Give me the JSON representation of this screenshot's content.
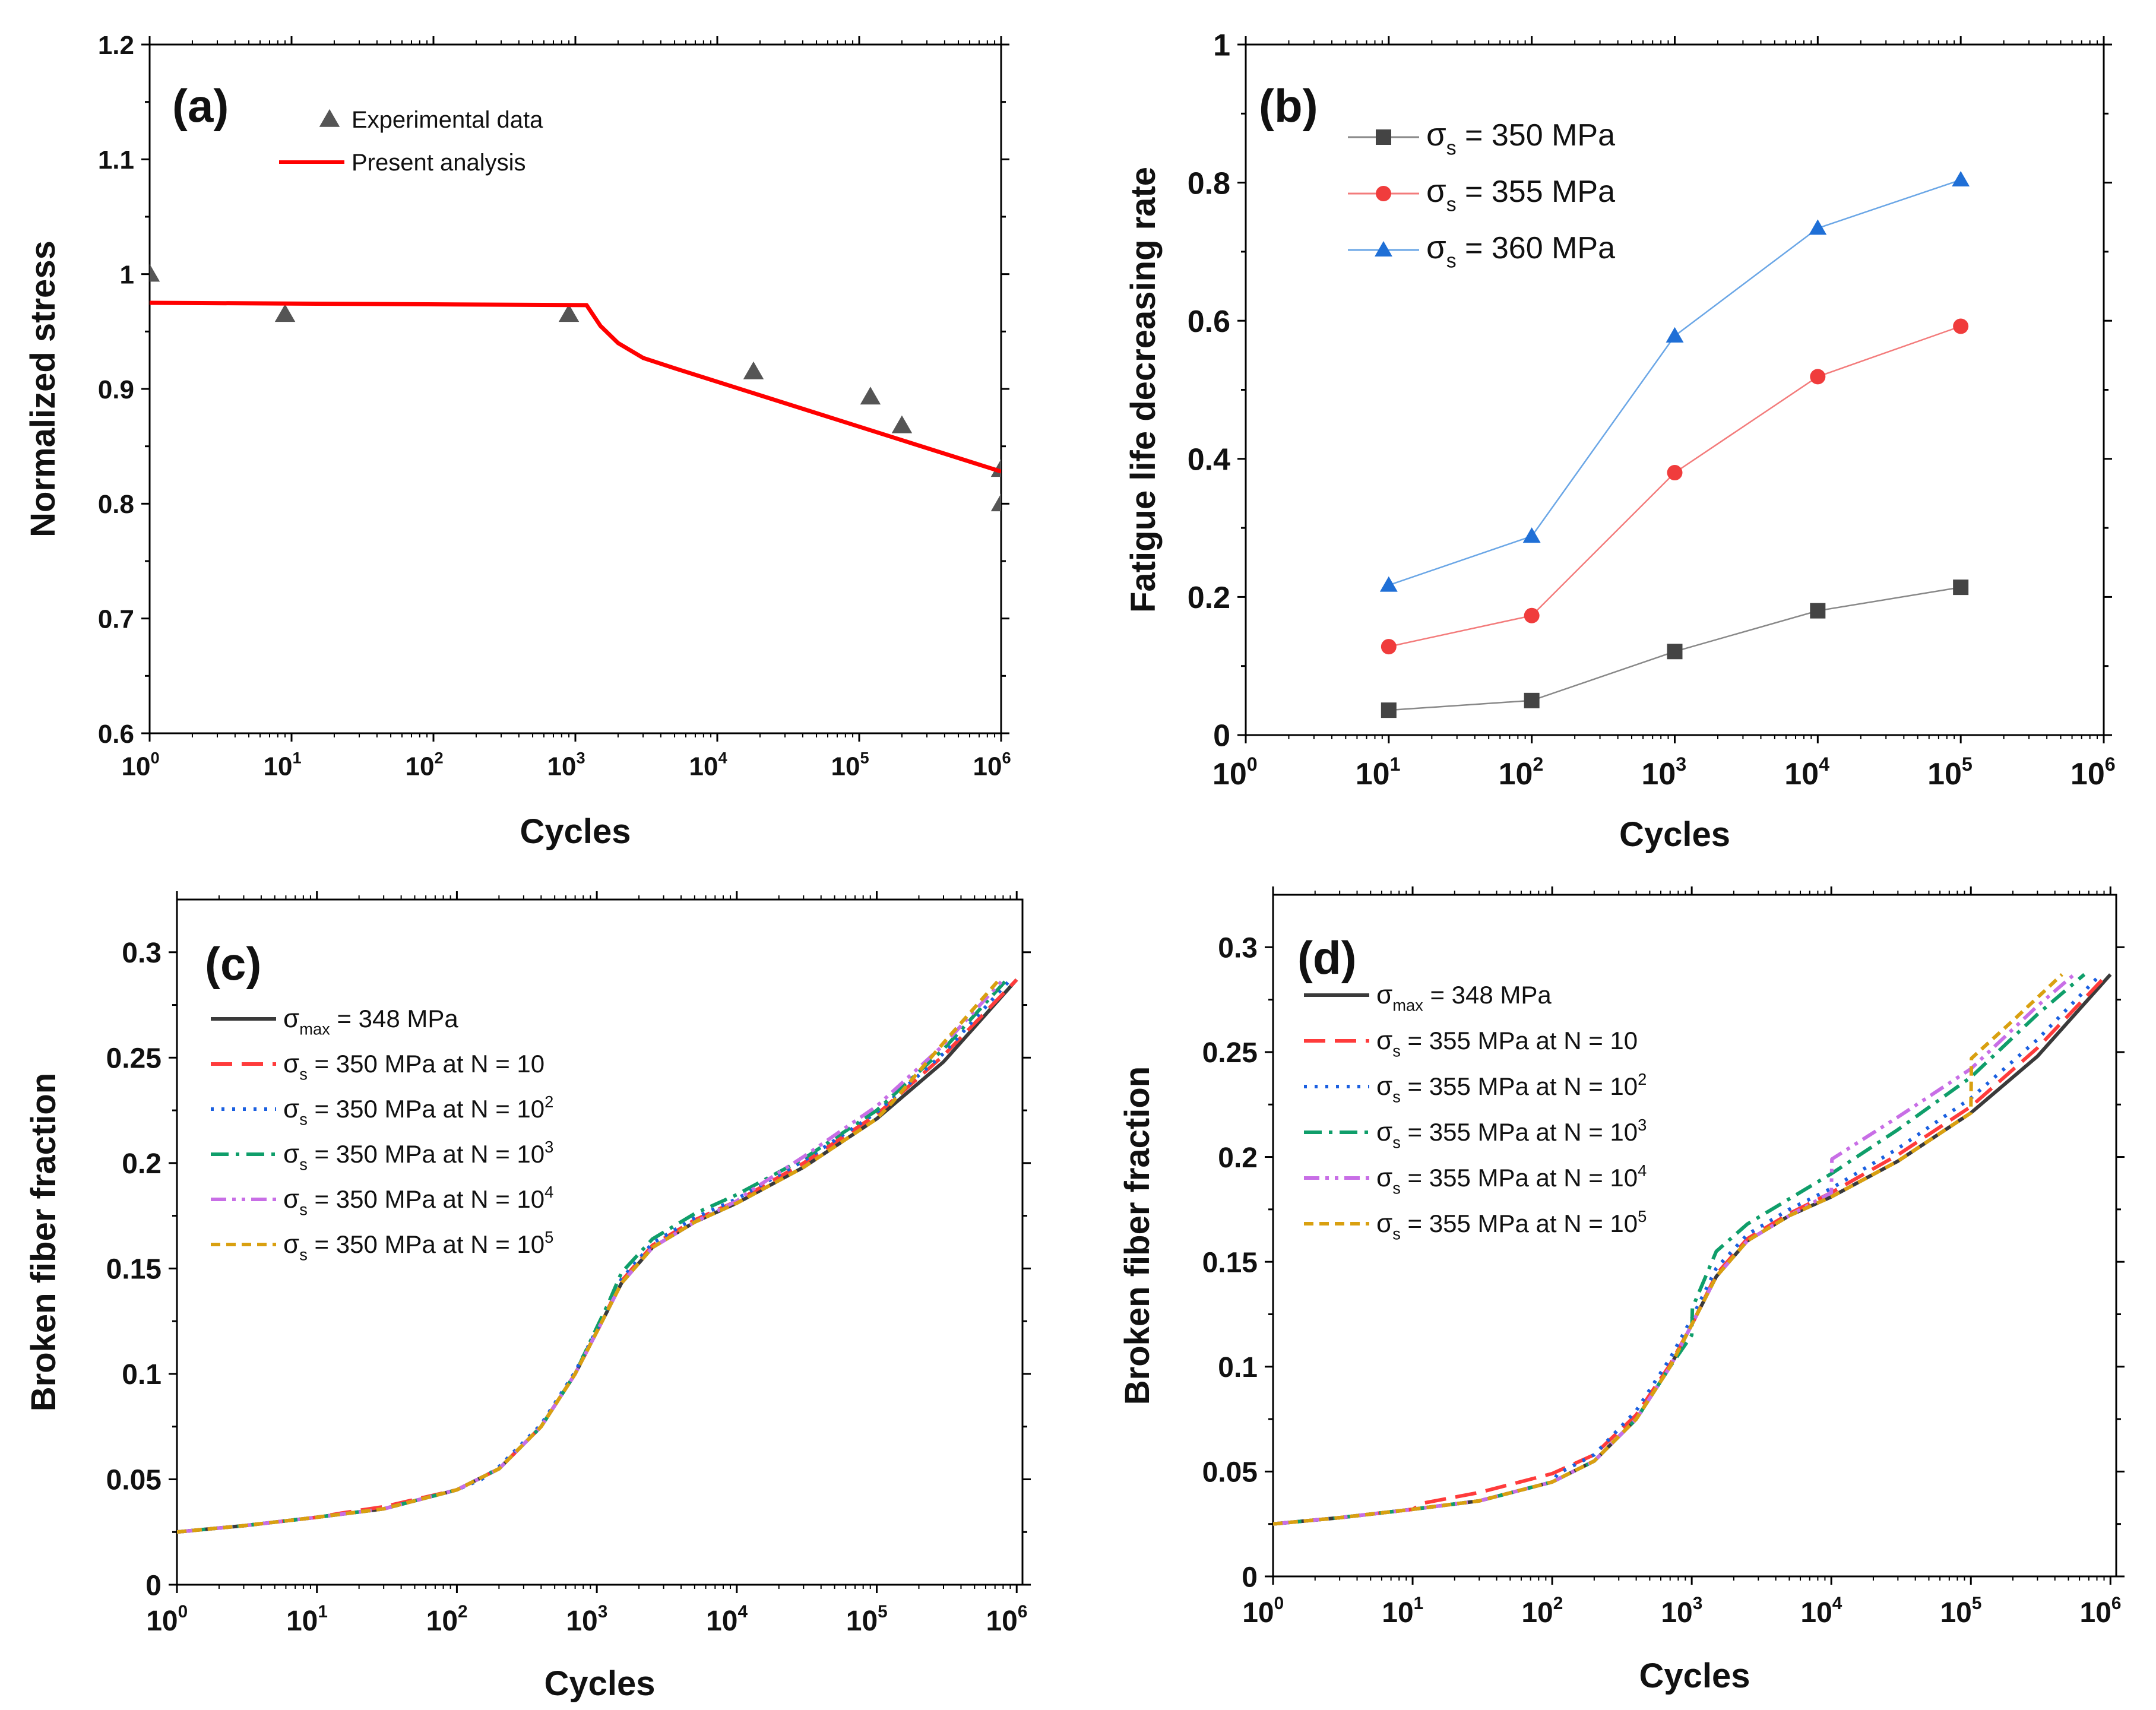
{
  "figure": {
    "background": "#ffffff"
  },
  "chart_data": [
    {
      "id": "a",
      "type": "line",
      "panel_label": "(a)",
      "xlabel": "Cycles",
      "ylabel": "Normalized stress",
      "xscale": "log",
      "xlim": [
        1,
        1000000
      ],
      "ylim": [
        0.6,
        1.2
      ],
      "x_tick_bases": [
        "10",
        "10",
        "10",
        "10",
        "10",
        "10",
        "10"
      ],
      "x_tick_exps": [
        "0",
        "1",
        "2",
        "3",
        "4",
        "5",
        "6"
      ],
      "x_tick_values": [
        1,
        10,
        100,
        1000,
        10000,
        100000,
        1000000
      ],
      "y_tick_labels": [
        "0.6",
        "0.7",
        "0.8",
        "0.9",
        "1",
        "1.1",
        "1.2"
      ],
      "y_tick_values": [
        0.6,
        0.7,
        0.8,
        0.9,
        1.0,
        1.1,
        1.2
      ],
      "legend": {
        "position": "top-center"
      },
      "series": [
        {
          "name": "Experimental data",
          "kind": "scatter",
          "marker": "triangle",
          "color": "#555555",
          "x": [
            1,
            9,
            900,
            18000,
            120000,
            200000,
            1000000,
            1000000
          ],
          "y": [
            1.0,
            0.965,
            0.965,
            0.915,
            0.893,
            0.868,
            0.83,
            0.8
          ]
        },
        {
          "name": "Present analysis",
          "kind": "line",
          "color": "#ff0000",
          "dash": "solid",
          "x": [
            1,
            1200,
            1500,
            2000,
            3000,
            5000,
            1000000
          ],
          "y": [
            0.975,
            0.973,
            0.955,
            0.94,
            0.927,
            0.918,
            0.828
          ]
        }
      ]
    },
    {
      "id": "b",
      "type": "line",
      "panel_label": "(b)",
      "xlabel": "Cycles",
      "ylabel": "Fatigue life decreasing rate",
      "xscale": "log",
      "xlim": [
        1,
        1000000
      ],
      "ylim": [
        0,
        1
      ],
      "x_tick_bases": [
        "10",
        "10",
        "10",
        "10",
        "10",
        "10",
        "10"
      ],
      "x_tick_exps": [
        "0",
        "1",
        "2",
        "3",
        "4",
        "5",
        "6"
      ],
      "x_tick_values": [
        1,
        10,
        100,
        1000,
        10000,
        100000,
        1000000
      ],
      "y_tick_labels": [
        "0",
        "0.2",
        "0.4",
        "0.6",
        "0.8",
        "1"
      ],
      "y_tick_values": [
        0,
        0.2,
        0.4,
        0.6,
        0.8,
        1.0
      ],
      "legend": {
        "position": "top-left"
      },
      "series": [
        {
          "name_prefix": "σ",
          "name_sub": "s",
          "name_suffix": " = 350 MPa",
          "kind": "line-marker",
          "marker": "square",
          "color": "#444444",
          "line_color": "#888888",
          "x": [
            10,
            100,
            1000,
            10000,
            100000
          ],
          "y": [
            0.036,
            0.05,
            0.121,
            0.18,
            0.214
          ]
        },
        {
          "name_prefix": "σ",
          "name_sub": "s",
          "name_suffix": " = 355 MPa",
          "kind": "line-marker",
          "marker": "circle",
          "color": "#f03c3c",
          "line_color": "#f37b7b",
          "x": [
            10,
            100,
            1000,
            10000,
            100000
          ],
          "y": [
            0.128,
            0.173,
            0.38,
            0.519,
            0.592
          ]
        },
        {
          "name_prefix": "σ",
          "name_sub": "s",
          "name_suffix": " = 360 MPa",
          "kind": "line-marker",
          "marker": "triangle",
          "color": "#1f6fd6",
          "line_color": "#6aa6e6",
          "x": [
            10,
            100,
            1000,
            10000,
            100000
          ],
          "y": [
            0.217,
            0.288,
            0.578,
            0.734,
            0.804
          ]
        }
      ]
    },
    {
      "id": "c",
      "type": "line",
      "panel_label": "(c)",
      "xlabel": "Cycles",
      "ylabel": "Broken fiber fraction",
      "xscale": "log",
      "xlim": [
        1,
        1100000
      ],
      "ylim": [
        0,
        0.325
      ],
      "x_tick_bases": [
        "10",
        "10",
        "10",
        "10",
        "10",
        "10",
        "10"
      ],
      "x_tick_exps": [
        "0",
        "1",
        "2",
        "3",
        "4",
        "5",
        "6"
      ],
      "x_tick_values": [
        1,
        10,
        100,
        1000,
        10000,
        100000,
        1000000
      ],
      "y_tick_labels": [
        "0",
        "0.05",
        "0.1",
        "0.15",
        "0.2",
        "0.25",
        "0.3"
      ],
      "y_tick_values": [
        0,
        0.05,
        0.1,
        0.15,
        0.2,
        0.25,
        0.3
      ],
      "legend": {
        "position": "upper-left"
      },
      "series": [
        {
          "name_prefix": "σ",
          "name_sub": "max",
          "name_suffix": " = 348 MPa",
          "name_sup": "",
          "color": "#3a3a3a",
          "dash": "solid",
          "x": [
            1,
            3,
            10,
            30,
            100,
            200,
            400,
            700,
            1000,
            1500,
            2500,
            5000,
            10000,
            30000,
            100000,
            300000,
            1000000
          ],
          "y": [
            0.025,
            0.028,
            0.032,
            0.036,
            0.045,
            0.055,
            0.075,
            0.1,
            0.12,
            0.143,
            0.16,
            0.172,
            0.181,
            0.198,
            0.221,
            0.248,
            0.287
          ]
        },
        {
          "name_prefix": "σ",
          "name_sub": "s",
          "name_suffix": " = 350 MPa at N = 10",
          "name_sup": "",
          "color": "#ff3b3b",
          "dash": "long",
          "x": [
            1,
            3,
            10,
            15,
            30,
            100,
            200,
            400,
            700,
            1000,
            1500,
            2500,
            5000,
            10000,
            30000,
            100000,
            300000,
            1000000
          ],
          "y": [
            0.025,
            0.028,
            0.032,
            0.034,
            0.037,
            0.045,
            0.055,
            0.075,
            0.1,
            0.12,
            0.144,
            0.161,
            0.173,
            0.182,
            0.2,
            0.223,
            0.251,
            0.287
          ]
        },
        {
          "name_prefix": "σ",
          "name_sub": "s",
          "name_suffix": " = 350 MPa at N = 10",
          "name_sup": "2",
          "color": "#1a5fe0",
          "dash": "dot",
          "x": [
            1,
            3,
            10,
            30,
            100,
            150,
            200,
            400,
            700,
            1000,
            1500,
            2500,
            5000,
            10000,
            30000,
            100000,
            300000,
            900000
          ],
          "y": [
            0.025,
            0.028,
            0.032,
            0.036,
            0.045,
            0.05,
            0.056,
            0.076,
            0.101,
            0.121,
            0.145,
            0.162,
            0.174,
            0.183,
            0.201,
            0.224,
            0.252,
            0.287
          ]
        },
        {
          "name_prefix": "σ",
          "name_sub": "s",
          "name_suffix": " = 350 MPa at N = 10",
          "name_sup": "3",
          "color": "#0f9e6a",
          "dash": "dashdot",
          "x": [
            1,
            3,
            10,
            30,
            100,
            200,
            400,
            700,
            1000,
            1200,
            1500,
            2500,
            5000,
            10000,
            30000,
            100000,
            300000,
            850000
          ],
          "y": [
            0.025,
            0.028,
            0.032,
            0.036,
            0.045,
            0.055,
            0.075,
            0.1,
            0.122,
            0.133,
            0.148,
            0.164,
            0.176,
            0.185,
            0.202,
            0.225,
            0.254,
            0.287
          ]
        },
        {
          "name_prefix": "σ",
          "name_sub": "s",
          "name_suffix": " = 350 MPa at N = 10",
          "name_sup": "4",
          "color": "#c86ee6",
          "dash": "dashdotdot",
          "x": [
            1,
            3,
            10,
            30,
            100,
            200,
            400,
            700,
            1000,
            1500,
            2500,
            5000,
            10000,
            12000,
            30000,
            100000,
            300000,
            800000
          ],
          "y": [
            0.025,
            0.028,
            0.032,
            0.036,
            0.045,
            0.055,
            0.075,
            0.1,
            0.12,
            0.143,
            0.16,
            0.172,
            0.182,
            0.186,
            0.203,
            0.227,
            0.256,
            0.287
          ]
        },
        {
          "name_prefix": "σ",
          "name_sub": "s",
          "name_suffix": " = 350 MPa at N = 10",
          "name_sup": "5",
          "color": "#d9a010",
          "dash": "short",
          "x": [
            1,
            3,
            10,
            30,
            100,
            200,
            400,
            700,
            1000,
            1500,
            2500,
            5000,
            10000,
            30000,
            100000,
            130000,
            300000,
            750000
          ],
          "y": [
            0.025,
            0.028,
            0.032,
            0.036,
            0.045,
            0.055,
            0.075,
            0.1,
            0.12,
            0.143,
            0.16,
            0.172,
            0.181,
            0.198,
            0.221,
            0.229,
            0.257,
            0.287
          ]
        }
      ]
    },
    {
      "id": "d",
      "type": "line",
      "panel_label": "(d)",
      "xlabel": "Cycles",
      "ylabel": "Broken fiber fraction",
      "xscale": "log",
      "xlim": [
        1,
        1100000
      ],
      "ylim": [
        0,
        0.325
      ],
      "x_tick_bases": [
        "10",
        "10",
        "10",
        "10",
        "10",
        "10",
        "10"
      ],
      "x_tick_exps": [
        "0",
        "1",
        "2",
        "3",
        "4",
        "5",
        "6"
      ],
      "x_tick_values": [
        1,
        10,
        100,
        1000,
        10000,
        100000,
        1000000
      ],
      "y_tick_labels": [
        "0",
        "0.05",
        "0.1",
        "0.15",
        "0.2",
        "0.25",
        "0.3"
      ],
      "y_tick_values": [
        0,
        0.05,
        0.1,
        0.15,
        0.2,
        0.25,
        0.3
      ],
      "legend": {
        "position": "upper-left"
      },
      "series": [
        {
          "name_prefix": "σ",
          "name_sub": "max",
          "name_suffix": " = 348 MPa",
          "name_sup": "",
          "color": "#3a3a3a",
          "dash": "solid",
          "x": [
            1,
            3,
            10,
            30,
            100,
            200,
            400,
            700,
            1000,
            1500,
            2500,
            5000,
            10000,
            30000,
            100000,
            300000,
            1000000
          ],
          "y": [
            0.025,
            0.028,
            0.032,
            0.036,
            0.045,
            0.055,
            0.075,
            0.1,
            0.12,
            0.143,
            0.16,
            0.172,
            0.181,
            0.198,
            0.221,
            0.248,
            0.287
          ]
        },
        {
          "name_prefix": "σ",
          "name_sub": "s",
          "name_suffix": " = 355 MPa at N = 10",
          "name_sup": "",
          "color": "#ff3b3b",
          "dash": "long",
          "x": [
            1,
            3,
            10,
            12,
            30,
            100,
            200,
            400,
            700,
            1000,
            1500,
            2500,
            5000,
            10000,
            30000,
            100000,
            300000,
            950000
          ],
          "y": [
            0.025,
            0.028,
            0.032,
            0.035,
            0.04,
            0.049,
            0.058,
            0.077,
            0.101,
            0.12,
            0.144,
            0.161,
            0.173,
            0.183,
            0.201,
            0.224,
            0.252,
            0.287
          ]
        },
        {
          "name_prefix": "σ",
          "name_sub": "s",
          "name_suffix": " = 355 MPa at N = 10",
          "name_sup": "2",
          "color": "#1a5fe0",
          "dash": "dot",
          "x": [
            1,
            3,
            10,
            30,
            100,
            110,
            200,
            400,
            700,
            1000,
            1500,
            2500,
            5000,
            10000,
            30000,
            100000,
            300000,
            850000
          ],
          "y": [
            0.025,
            0.028,
            0.032,
            0.036,
            0.045,
            0.049,
            0.058,
            0.079,
            0.104,
            0.123,
            0.147,
            0.163,
            0.175,
            0.185,
            0.204,
            0.228,
            0.256,
            0.287
          ]
        },
        {
          "name_prefix": "σ",
          "name_sub": "s",
          "name_suffix": " = 355 MPa at N = 10",
          "name_sup": "3",
          "color": "#0f9e6a",
          "dash": "dashdot",
          "x": [
            1,
            3,
            10,
            30,
            100,
            200,
            400,
            700,
            1000,
            1010,
            1500,
            2500,
            5000,
            10000,
            30000,
            100000,
            300000,
            650000
          ],
          "y": [
            0.025,
            0.028,
            0.032,
            0.036,
            0.045,
            0.055,
            0.075,
            0.1,
            0.115,
            0.128,
            0.155,
            0.168,
            0.18,
            0.192,
            0.213,
            0.238,
            0.268,
            0.287
          ]
        },
        {
          "name_prefix": "σ",
          "name_sub": "s",
          "name_suffix": " = 355 MPa at N = 10",
          "name_sup": "4",
          "color": "#c86ee6",
          "dash": "dashdotdot",
          "x": [
            1,
            3,
            10,
            30,
            100,
            200,
            400,
            700,
            1000,
            1500,
            2500,
            5000,
            10000,
            10100,
            30000,
            100000,
            300000,
            550000
          ],
          "y": [
            0.025,
            0.028,
            0.032,
            0.036,
            0.045,
            0.055,
            0.075,
            0.1,
            0.12,
            0.143,
            0.16,
            0.172,
            0.183,
            0.199,
            0.219,
            0.242,
            0.272,
            0.287
          ]
        },
        {
          "name_prefix": "σ",
          "name_sub": "s",
          "name_suffix": " = 355 MPa at N = 10",
          "name_sup": "5",
          "color": "#d9a010",
          "dash": "short",
          "x": [
            1,
            3,
            10,
            30,
            100,
            200,
            400,
            700,
            1000,
            1500,
            2500,
            5000,
            10000,
            30000,
            100000,
            101000,
            200000,
            450000
          ],
          "y": [
            0.025,
            0.028,
            0.032,
            0.036,
            0.045,
            0.055,
            0.075,
            0.1,
            0.12,
            0.143,
            0.16,
            0.172,
            0.181,
            0.198,
            0.221,
            0.247,
            0.265,
            0.287
          ]
        }
      ]
    }
  ]
}
